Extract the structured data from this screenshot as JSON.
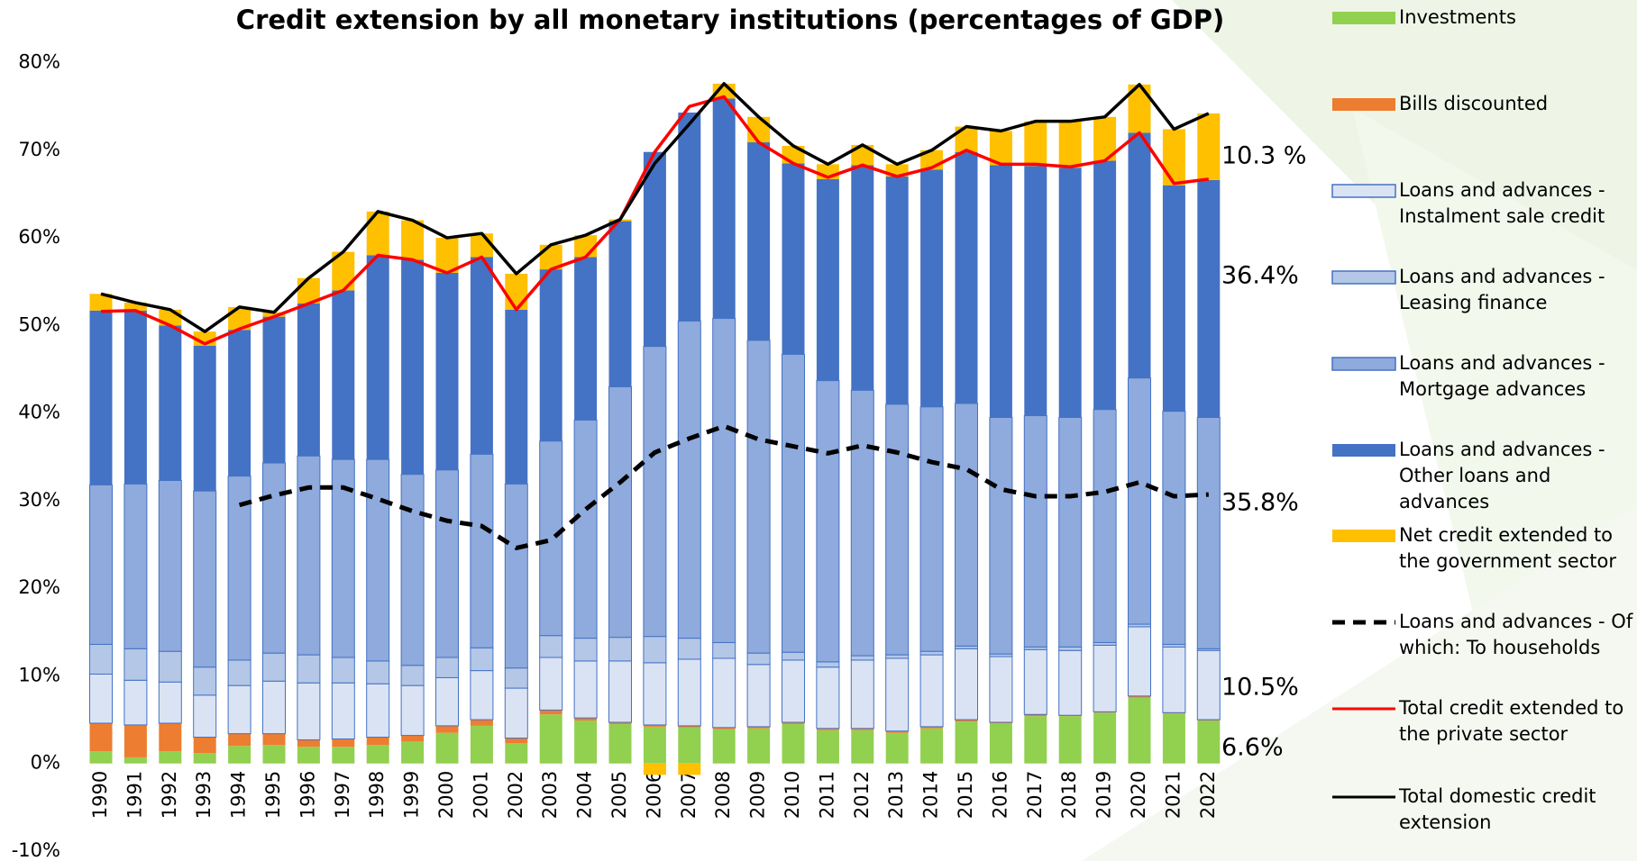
{
  "chart_data": {
    "type": "bar",
    "title": "Credit extension by all monetary institutions (percentages of GDP)",
    "categories": [
      "1990",
      "1991",
      "1992",
      "1993",
      "1994",
      "1995",
      "1996",
      "1997",
      "1998",
      "1999",
      "2000",
      "2001",
      "2002",
      "2003",
      "2004",
      "2005",
      "2006",
      "2007",
      "2008",
      "2009",
      "2010",
      "2011",
      "2012",
      "2013",
      "2014",
      "2015",
      "2016",
      "2017",
      "2018",
      "2019",
      "2020",
      "2021",
      "2022"
    ],
    "ylim": [
      -10,
      80
    ],
    "yticks": [
      {
        "value": -10,
        "label": "-10%"
      },
      {
        "value": 0,
        "label": "0%"
      },
      {
        "value": 10,
        "label": "10%"
      },
      {
        "value": 20,
        "label": "20%"
      },
      {
        "value": 30,
        "label": "30%"
      },
      {
        "value": 40,
        "label": "40%"
      },
      {
        "value": 50,
        "label": "50%"
      },
      {
        "value": 60,
        "label": "60%"
      },
      {
        "value": 70,
        "label": "70%"
      },
      {
        "value": 80,
        "label": "80%"
      }
    ],
    "grid": false,
    "stacked": true,
    "annotations": [
      "10.3 %",
      "36.4%",
      "35.8%",
      "10.5%",
      "6.6%"
    ],
    "series": [
      {
        "name": "Investments",
        "type": "bar",
        "color": "#92d050",
        "values": [
          1.4,
          0.7,
          1.4,
          1.2,
          2.0,
          2.1,
          1.9,
          1.9,
          2.1,
          2.5,
          3.5,
          4.3,
          2.3,
          5.6,
          4.9,
          4.5,
          4.2,
          4.1,
          3.9,
          4.0,
          4.5,
          3.8,
          3.8,
          3.5,
          4.0,
          4.8,
          4.6,
          5.4,
          5.4,
          5.8,
          7.5,
          5.7,
          4.9
        ]
      },
      {
        "name": "Bills discounted",
        "type": "bar",
        "color": "#ed7d31",
        "values": [
          3.2,
          3.7,
          3.2,
          1.8,
          1.4,
          1.3,
          0.8,
          0.9,
          0.9,
          0.7,
          0.8,
          0.7,
          0.6,
          0.5,
          0.3,
          0.2,
          0.2,
          0.2,
          0.2,
          0.2,
          0.2,
          0.2,
          0.2,
          0.2,
          0.2,
          0.2,
          0.1,
          0.2,
          0.1,
          0.1,
          0.2,
          0.1,
          0.1
        ]
      },
      {
        "name": "Loans and advances - Instalment sale credit",
        "type": "bar",
        "color": "#dae3f3",
        "values": [
          5.6,
          5.1,
          4.7,
          4.8,
          5.5,
          6.0,
          6.5,
          6.4,
          6.1,
          5.7,
          5.5,
          5.6,
          5.7,
          6.0,
          6.5,
          7.0,
          7.1,
          7.6,
          7.9,
          7.1,
          7.1,
          7.0,
          7.8,
          8.3,
          8.2,
          8.1,
          7.5,
          7.4,
          7.4,
          7.6,
          7.9,
          7.5,
          7.9
        ]
      },
      {
        "name": "Loans and advances - Leasing finance",
        "type": "bar",
        "color": "#b4c7e7",
        "values": [
          3.4,
          3.6,
          3.5,
          3.2,
          2.9,
          3.2,
          3.2,
          2.9,
          2.6,
          2.3,
          2.3,
          2.6,
          2.3,
          2.5,
          2.6,
          2.7,
          3.0,
          2.4,
          1.8,
          1.3,
          0.9,
          0.6,
          0.5,
          0.4,
          0.4,
          0.3,
          0.3,
          0.3,
          0.4,
          0.3,
          0.3,
          0.3,
          0.2
        ]
      },
      {
        "name": "Loans and advances - Mortgage advances",
        "type": "bar",
        "color": "#8faadc",
        "values": [
          18.2,
          18.8,
          19.5,
          20.1,
          21.0,
          21.7,
          22.7,
          22.6,
          23.0,
          21.8,
          21.4,
          22.1,
          21.0,
          22.2,
          24.9,
          28.6,
          33.1,
          36.2,
          37.0,
          35.7,
          34.0,
          32.1,
          30.3,
          28.6,
          27.9,
          27.7,
          27.0,
          26.4,
          26.2,
          26.6,
          28.1,
          26.6,
          26.4
        ]
      },
      {
        "name": "Loans and advances - Other loans and advances",
        "type": "bar",
        "color": "#4472c4",
        "values": [
          19.9,
          19.8,
          17.7,
          16.6,
          16.7,
          16.7,
          17.4,
          19.3,
          23.3,
          24.5,
          22.5,
          22.5,
          19.9,
          19.6,
          18.6,
          18.9,
          22.2,
          23.8,
          25.1,
          22.6,
          21.8,
          23.0,
          25.7,
          26.0,
          27.1,
          28.7,
          28.8,
          28.5,
          28.5,
          28.4,
          28.0,
          25.8,
          27.1
        ]
      },
      {
        "name": "Net credit extended to the government sector",
        "type": "bar",
        "color": "#ffc000",
        "values": [
          1.9,
          0.9,
          1.8,
          1.6,
          2.6,
          0.5,
          2.9,
          4.4,
          5.0,
          4.5,
          4.0,
          2.7,
          4.1,
          2.8,
          2.5,
          0.2,
          -1.3,
          -1.3,
          1.7,
          2.9,
          2.0,
          1.7,
          2.3,
          1.4,
          2.2,
          2.9,
          3.9,
          5.1,
          5.3,
          5.0,
          5.5,
          6.4,
          7.6
        ]
      },
      {
        "name": "Loans and advances - Of which: To households",
        "type": "line",
        "color": "#000000",
        "dashed": true,
        "values": [
          null,
          null,
          null,
          null,
          29.5,
          30.6,
          31.5,
          31.5,
          30.2,
          28.8,
          27.7,
          27.1,
          24.6,
          25.5,
          29.0,
          32.1,
          35.5,
          37.1,
          38.5,
          37.0,
          36.2,
          35.4,
          36.3,
          35.5,
          34.4,
          33.6,
          31.3,
          30.5,
          30.5,
          31.0,
          32.1,
          30.5,
          30.7
        ]
      },
      {
        "name": "Total credit extended to the private sector",
        "type": "line",
        "color": "#ff0000",
        "dashed": false,
        "values": [
          51.6,
          51.7,
          50.0,
          47.9,
          49.6,
          51.0,
          52.5,
          54.0,
          58.0,
          57.5,
          56.0,
          57.8,
          51.8,
          56.4,
          57.8,
          62.1,
          69.8,
          75.0,
          76.1,
          70.9,
          68.5,
          66.9,
          68.3,
          67.0,
          68.0,
          70.0,
          68.4,
          68.4,
          68.1,
          68.8,
          72.0,
          66.2,
          66.7
        ]
      },
      {
        "name": "Total domestic credit extension",
        "type": "line",
        "color": "#000000",
        "dashed": false,
        "values": [
          53.6,
          52.6,
          51.8,
          49.3,
          52.1,
          51.5,
          55.4,
          58.4,
          63.0,
          62.0,
          60.0,
          60.5,
          55.9,
          59.2,
          60.3,
          62.1,
          68.5,
          73.0,
          77.6,
          73.8,
          70.5,
          68.4,
          70.6,
          68.4,
          70.0,
          72.7,
          72.2,
          73.3,
          73.3,
          73.8,
          77.5,
          72.4,
          74.2
        ]
      }
    ]
  }
}
